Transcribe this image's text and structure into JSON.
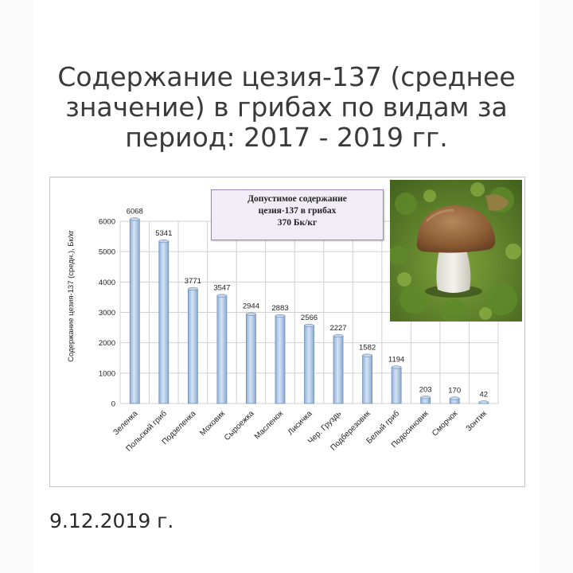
{
  "header": {
    "title_lines": [
      "Содержание цезия-137 (среднее",
      "значение) в грибах по видам за",
      "период: 2017 - 2019 гг."
    ]
  },
  "callout": {
    "lines": [
      "Допустимое содержание",
      "цезия-137 в грибах",
      "370 Бк/кг"
    ]
  },
  "footer": {
    "date": "9.12.2019 г."
  },
  "colors": {
    "bar_fill": "#a9c4e4",
    "bar_stroke": "#6e8fb9",
    "grid": "#d0d0d0",
    "callout_bg": "#f1ecf5"
  },
  "chart_data": {
    "type": "bar",
    "title": "",
    "xlabel": "",
    "ylabel": "Содержание цезия-137 (средн.), Бк/кг",
    "ylim": [
      0,
      6000
    ],
    "yticks": [
      0,
      1000,
      2000,
      3000,
      4000,
      5000,
      6000
    ],
    "grid": true,
    "categories": [
      "Зеленка",
      "Польский гриб",
      "Подзеленка",
      "Моховик",
      "Сыроежка",
      "Масленок",
      "Лисичка",
      "Чер. Груздь",
      "Подберезовик",
      "Белый гриб",
      "Подосиновик",
      "Сморчок",
      "Зонтик"
    ],
    "values": [
      6068,
      5341,
      3771,
      3547,
      2944,
      2883,
      2566,
      2227,
      1582,
      1194,
      203,
      170,
      42
    ]
  },
  "photo": {
    "icon": "porcini-mushroom-photo"
  }
}
